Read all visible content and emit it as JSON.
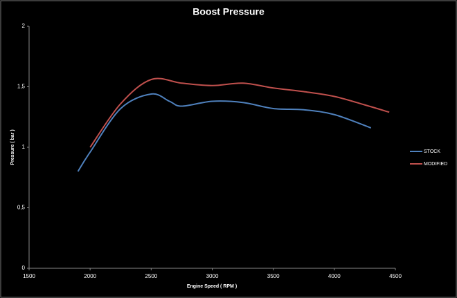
{
  "chart_data": {
    "type": "line",
    "title": "Boost Pressure",
    "x_label": "Engine Speed ( RPM )",
    "y_label": "Pressure ( bar )",
    "xlim": [
      1500,
      4500
    ],
    "xticks": [
      1500,
      2000,
      2500,
      3000,
      3500,
      4000,
      4500
    ],
    "ylim": [
      0,
      2
    ],
    "yticks": [
      0,
      {
        "value": 0.5,
        "label": "0,5"
      },
      1,
      {
        "value": 1.5,
        "label": "1,5"
      },
      2
    ],
    "legend": "right",
    "series": [
      {
        "name": "STOCK",
        "color": "#4f81bd",
        "x": [
          1900,
          2000,
          2250,
          2500,
          2650,
          2750,
          3000,
          3250,
          3500,
          3750,
          4000,
          4300
        ],
        "values": [
          0.8,
          0.96,
          1.32,
          1.44,
          1.38,
          1.34,
          1.38,
          1.37,
          1.32,
          1.31,
          1.27,
          1.16
        ]
      },
      {
        "name": "MODIFIED",
        "color": "#c0504d",
        "x": [
          2000,
          2250,
          2500,
          2750,
          3000,
          3250,
          3500,
          3750,
          4000,
          4250,
          4450
        ],
        "values": [
          1.0,
          1.36,
          1.56,
          1.53,
          1.51,
          1.53,
          1.49,
          1.46,
          1.42,
          1.35,
          1.29
        ]
      }
    ]
  }
}
